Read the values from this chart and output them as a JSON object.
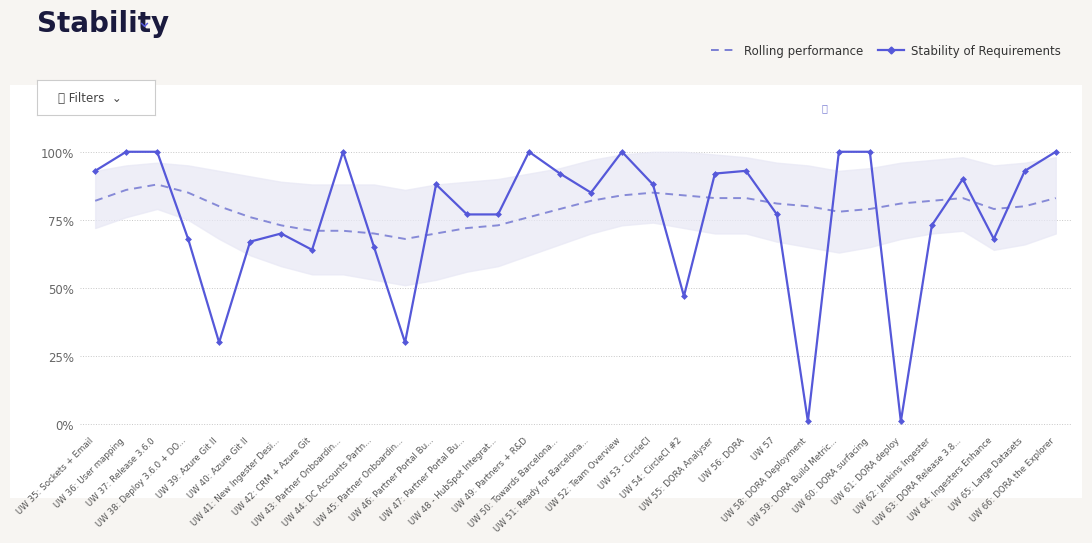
{
  "title": "Stability",
  "title_arrow": "⌄",
  "background_color": "#f7f5f2",
  "chart_background": "#ffffff",
  "line_color": "#5558d9",
  "rolling_color": "#7b7fd4",
  "fill_color": "#e8e8f5",
  "fill_alpha": 0.7,
  "categories": [
    "UW 35: Sockets + Email",
    "UW 36: User mapping",
    "UW 37: Release 3.6.0",
    "UW 38: Deploy 3.6.0 + DO...",
    "UW 39: Azure Git II",
    "UW 40: Azure Git II",
    "UW 41: New Ingester Desi...",
    "UW 42: CRM + Azure Git",
    "UW 43: Partner Onboardin...",
    "UW 44: DC Accounts Partn...",
    "UW 45: Partner Onboardin...",
    "UW 46: Partner Portal Bu...",
    "UW 47: Partner Portal Bu...",
    "UW 48 - HubSpot Integrat...",
    "UW 49: Partners + R&D",
    "UW 50: Towards Barcelona...",
    "UW 51: Ready for Barcelona...",
    "UW 52: Team Overview",
    "UW 53 - CircleCI",
    "UW 54: CircleCI #2",
    "UW 55: DORA Analyser",
    "UW 56: DORA",
    "UW 57",
    "UW 58: DORA Deployment",
    "UW 59: DORA Build Metric...",
    "UW 60: DORA surfacing",
    "UW 61: DORA deploy",
    "UW 62: Jenkins Ingester",
    "UW 63: DORA Release 3.8...",
    "UW 64: Ingesters Enhance",
    "UW 65: Large Datasets",
    "UW 66: DORA the Explorer"
  ],
  "stability_values": [
    93,
    100,
    100,
    68,
    30,
    67,
    70,
    64,
    100,
    65,
    30,
    88,
    77,
    77,
    100,
    92,
    85,
    100,
    88,
    47,
    92,
    93,
    77,
    1,
    100,
    100,
    1,
    73,
    90,
    68,
    93,
    100
  ],
  "rolling_values": [
    82,
    86,
    88,
    85,
    80,
    76,
    73,
    71,
    71,
    70,
    68,
    70,
    72,
    73,
    76,
    79,
    82,
    84,
    85,
    84,
    83,
    83,
    81,
    80,
    78,
    79,
    81,
    82,
    83,
    79,
    80,
    83
  ],
  "rolling_upper": [
    93,
    95,
    96,
    95,
    93,
    91,
    89,
    88,
    88,
    88,
    86,
    88,
    89,
    90,
    92,
    94,
    97,
    99,
    100,
    100,
    99,
    98,
    96,
    95,
    93,
    94,
    96,
    97,
    98,
    95,
    96,
    98
  ],
  "rolling_lower": [
    72,
    76,
    79,
    75,
    68,
    62,
    58,
    55,
    55,
    53,
    51,
    53,
    56,
    58,
    62,
    66,
    70,
    73,
    74,
    72,
    70,
    70,
    67,
    65,
    63,
    65,
    68,
    70,
    71,
    64,
    66,
    70
  ],
  "yticks": [
    0,
    25,
    50,
    75,
    100
  ],
  "ytick_labels": [
    "0%",
    "25%",
    "50%",
    "75%",
    "100%"
  ],
  "filter_label": "Filters",
  "legend_rolling": "Rolling performance",
  "legend_stability": "Stability of Requirements"
}
